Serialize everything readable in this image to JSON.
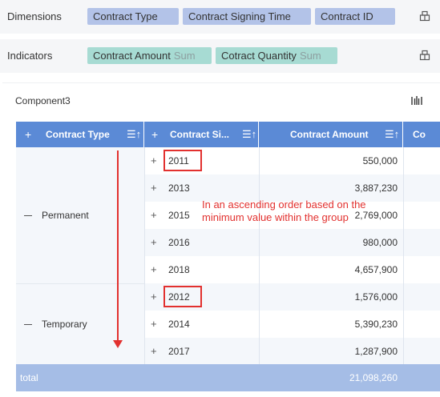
{
  "dimensions": {
    "label": "Dimensions",
    "chips": [
      "Contract Type",
      "Contract Signing Time",
      "Contract ID"
    ]
  },
  "indicators": {
    "label": "Indicators",
    "chips": [
      {
        "name": "Contract Amount",
        "agg": "Sum"
      },
      {
        "name": "Cotract Quantity",
        "agg": "Sum"
      }
    ]
  },
  "panel": {
    "title": "Component3"
  },
  "table": {
    "headers": {
      "type": "Contract Type",
      "signing": "Contract Si...",
      "amount": "Contract Amount",
      "extra": "Co"
    },
    "groups": [
      {
        "name": "Permanent",
        "rows": [
          {
            "year": "2011",
            "amount": "550,000"
          },
          {
            "year": "2013",
            "amount": "3,887,230"
          },
          {
            "year": "2015",
            "amount": "2,769,000"
          },
          {
            "year": "2016",
            "amount": "980,000"
          },
          {
            "year": "2018",
            "amount": "4,657,900"
          }
        ]
      },
      {
        "name": "Temporary",
        "rows": [
          {
            "year": "2012",
            "amount": "1,576,000"
          },
          {
            "year": "2014",
            "amount": "5,390,230"
          },
          {
            "year": "2017",
            "amount": "1,287,900"
          }
        ]
      }
    ],
    "total": {
      "label": "total",
      "amount": "21,098,260"
    }
  },
  "annotation": {
    "line1": "In an ascending order based on the",
    "line2": "minimum value within the group"
  },
  "colors": {
    "header": "#5b8ad6",
    "total": "#a5bde6",
    "dimension_chip": "#b3c3e8",
    "indicator_chip": "#a7dbd3",
    "annotation": "#e2312f"
  }
}
